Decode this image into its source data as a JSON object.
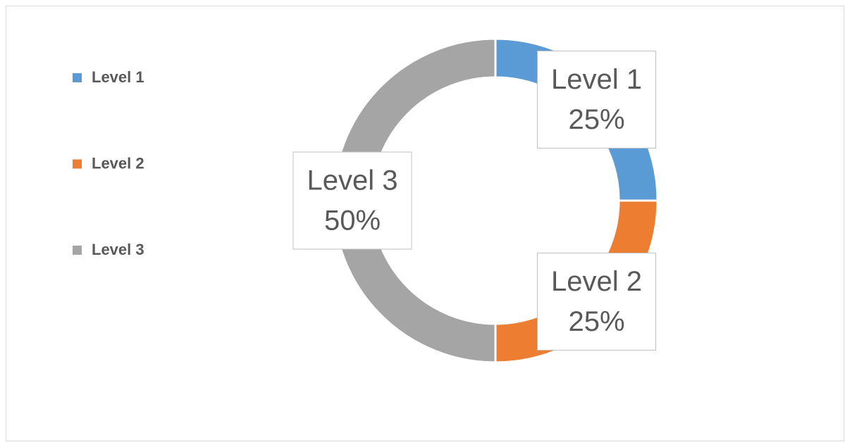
{
  "chart_data": {
    "type": "donut",
    "categories": [
      "Level 1",
      "Level 2",
      "Level 3"
    ],
    "values": [
      25,
      25,
      50
    ],
    "value_labels": [
      "25%",
      "25%",
      "50%"
    ],
    "colors": [
      "#5b9bd5",
      "#ed7d31",
      "#a5a5a5"
    ],
    "legend": "left"
  }
}
